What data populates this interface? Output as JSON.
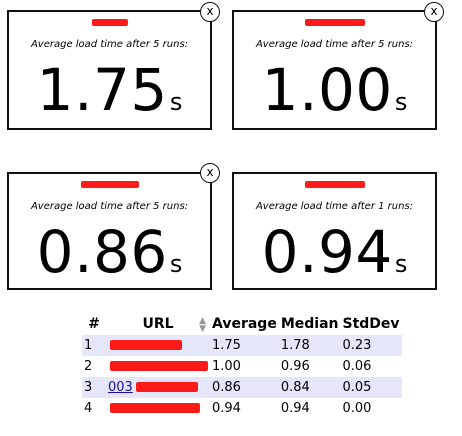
{
  "cards": [
    {
      "subtitle": "Average load time after 5 runs:",
      "value": "1.75",
      "unit": "s"
    },
    {
      "subtitle": "Average load time after 5 runs:",
      "value": "1.00",
      "unit": "s"
    },
    {
      "subtitle": "Average load time after 5 runs:",
      "value": "0.86",
      "unit": "s"
    },
    {
      "subtitle": "Average load time after 1 runs:",
      "value": "0.94",
      "unit": "s"
    }
  ],
  "close_label": "x",
  "table": {
    "headers": {
      "num": "#",
      "url": "URL",
      "average": "Average",
      "median": "Median",
      "stddev": "StdDev"
    },
    "rows": [
      {
        "index": "1",
        "url": "",
        "average": "1.75",
        "median": "1.78",
        "stddev": "0.23"
      },
      {
        "index": "2",
        "url": "",
        "average": "1.00",
        "median": "0.96",
        "stddev": "0.06"
      },
      {
        "index": "3",
        "url": "003",
        "average": "0.86",
        "median": "0.84",
        "stddev": "0.05"
      },
      {
        "index": "4",
        "url": "",
        "average": "0.94",
        "median": "0.94",
        "stddev": "0.00"
      }
    ]
  },
  "colors": {
    "redaction": "#ff1a1a",
    "row_stripe": "#e6e6fa"
  }
}
